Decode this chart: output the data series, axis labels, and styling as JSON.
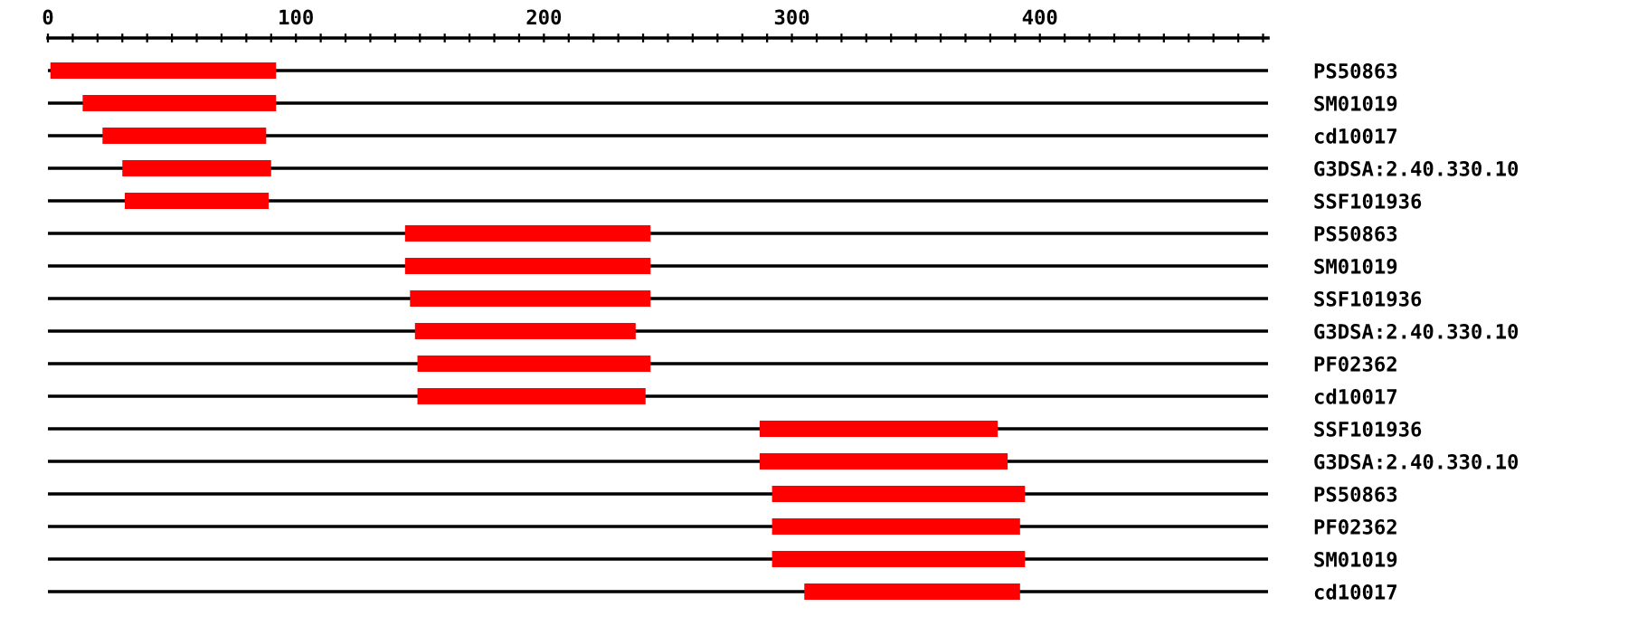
{
  "chart_data": {
    "type": "bar",
    "orientation": "horizontal",
    "categories": [
      "PS50863",
      "SM01019",
      "cd10017",
      "G3DSA:2.40.330.10",
      "SSF101936",
      "PS50863",
      "SM01019",
      "SSF101936",
      "G3DSA:2.40.330.10",
      "PF02362",
      "cd10017",
      "SSF101936",
      "G3DSA:2.40.330.10",
      "PS50863",
      "PF02362",
      "SM01019",
      "cd10017"
    ],
    "base": [
      1,
      14,
      22,
      30,
      31,
      144,
      144,
      146,
      148,
      149,
      149,
      287,
      287,
      292,
      292,
      292,
      305
    ],
    "values": [
      91,
      78,
      66,
      60,
      58,
      99,
      99,
      97,
      89,
      94,
      92,
      96,
      100,
      102,
      100,
      102,
      87
    ],
    "color": "#ff0000",
    "xlim": [
      0,
      492
    ],
    "xticks": [
      0,
      {
        "value": 10,
        "label": null
      },
      {
        "value": 20,
        "label": null
      },
      {
        "value": 30,
        "label": null
      },
      {
        "value": 40,
        "label": null
      },
      {
        "value": 50,
        "label": null
      },
      {
        "value": 60,
        "label": null
      },
      {
        "value": 70,
        "label": null
      },
      {
        "value": 80,
        "label": null
      },
      {
        "value": 90,
        "label": null
      },
      100,
      {
        "value": 110,
        "label": null
      },
      {
        "value": 120,
        "label": null
      },
      {
        "value": 130,
        "label": null
      },
      {
        "value": 140,
        "label": null
      },
      {
        "value": 150,
        "label": null
      },
      {
        "value": 160,
        "label": null
      },
      {
        "value": 170,
        "label": null
      },
      {
        "value": 180,
        "label": null
      },
      {
        "value": 190,
        "label": null
      },
      200,
      {
        "value": 210,
        "label": null
      },
      {
        "value": 220,
        "label": null
      },
      {
        "value": 230,
        "label": null
      },
      {
        "value": 240,
        "label": null
      },
      {
        "value": 250,
        "label": null
      },
      {
        "value": 260,
        "label": null
      },
      {
        "value": 270,
        "label": null
      },
      {
        "value": 280,
        "label": null
      },
      {
        "value": 290,
        "label": null
      },
      300,
      {
        "value": 310,
        "label": null
      },
      {
        "value": 320,
        "label": null
      },
      {
        "value": 330,
        "label": null
      },
      {
        "value": 340,
        "label": null
      },
      {
        "value": 350,
        "label": null
      },
      {
        "value": 360,
        "label": null
      },
      {
        "value": 370,
        "label": null
      },
      {
        "value": 380,
        "label": null
      },
      {
        "value": 390,
        "label": null
      },
      400,
      {
        "value": 410,
        "label": null
      },
      {
        "value": 420,
        "label": null
      },
      {
        "value": 430,
        "label": null
      },
      {
        "value": 440,
        "label": null
      },
      {
        "value": 450,
        "label": null
      },
      {
        "value": 460,
        "label": null
      },
      {
        "value": 470,
        "label": null
      },
      {
        "value": 480,
        "label": null
      },
      {
        "value": 490,
        "label": null
      }
    ],
    "grid": "y"
  }
}
